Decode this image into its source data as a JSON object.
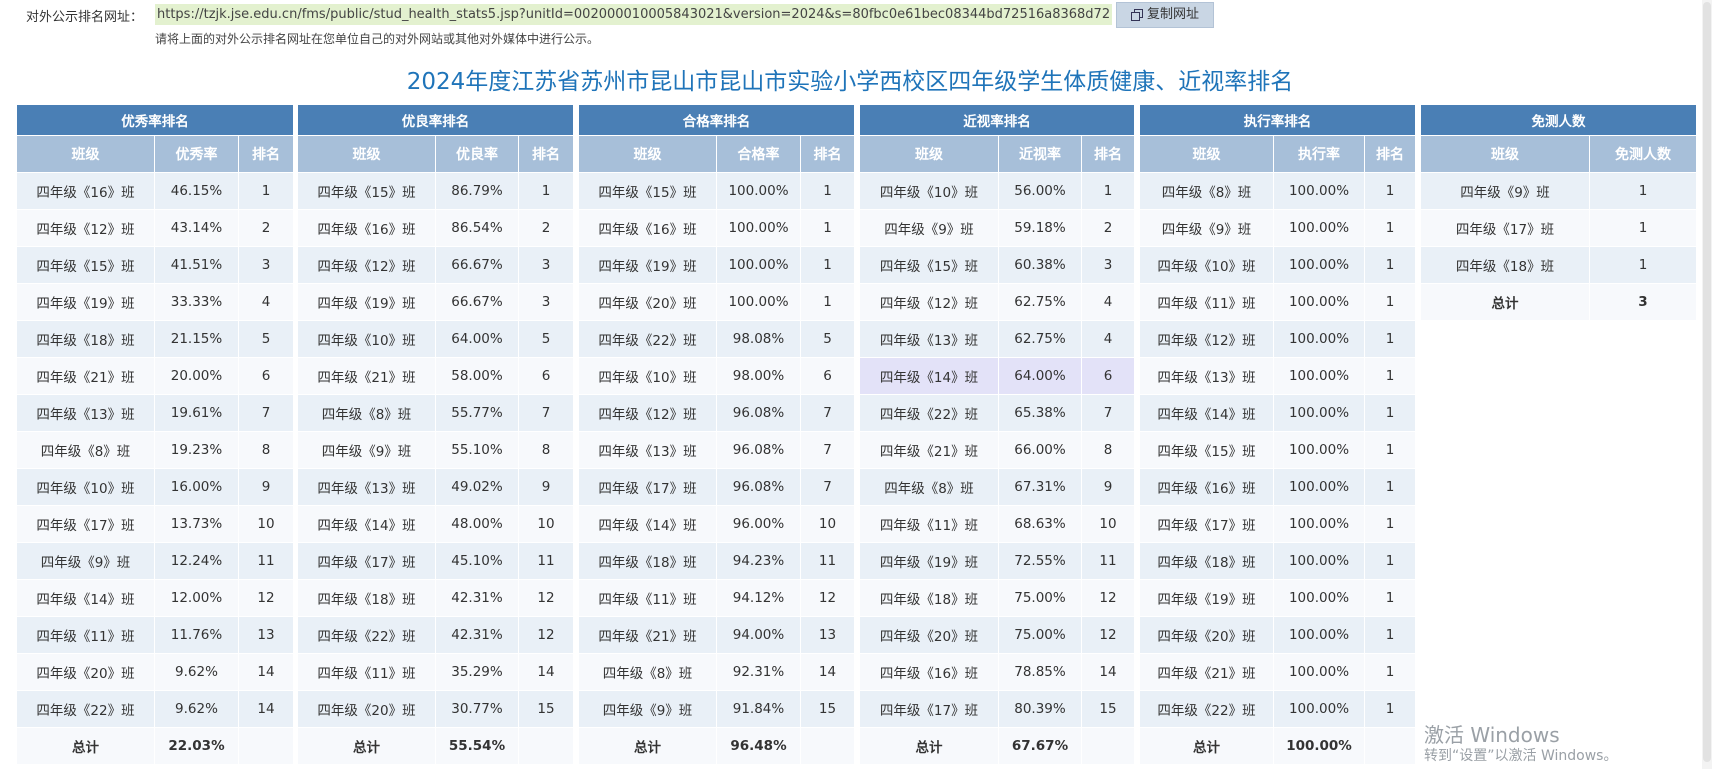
{
  "urlbar": {
    "label": "对外公示排名网址：",
    "url": "https://tzjk.jse.edu.cn/fms/public/stud_health_stats5.jsp?unitId=002000010005843021&version=2024&s=80fbc0e61bec08344bd72516a8368d72",
    "copy_label": "复制网址",
    "hint": "请将上面的对外公示排名网址在您单位自己的对外网站或其他对外媒体中进行公示。"
  },
  "title": "2024年度江苏省苏州市昆山市昆山市实验小学西校区四年级学生体质健康、近视率排名",
  "tables": {
    "excellent": {
      "title": "优秀率排名",
      "headers": [
        "班级",
        "优秀率",
        "排名"
      ],
      "rows": [
        [
          "四年级《16》班",
          "46.15%",
          "1"
        ],
        [
          "四年级《12》班",
          "43.14%",
          "2"
        ],
        [
          "四年级《15》班",
          "41.51%",
          "3"
        ],
        [
          "四年级《19》班",
          "33.33%",
          "4"
        ],
        [
          "四年级《18》班",
          "21.15%",
          "5"
        ],
        [
          "四年级《21》班",
          "20.00%",
          "6"
        ],
        [
          "四年级《13》班",
          "19.61%",
          "7"
        ],
        [
          "四年级《8》班",
          "19.23%",
          "8"
        ],
        [
          "四年级《10》班",
          "16.00%",
          "9"
        ],
        [
          "四年级《17》班",
          "13.73%",
          "10"
        ],
        [
          "四年级《9》班",
          "12.24%",
          "11"
        ],
        [
          "四年级《14》班",
          "12.00%",
          "12"
        ],
        [
          "四年级《11》班",
          "11.76%",
          "13"
        ],
        [
          "四年级《20》班",
          "9.62%",
          "14"
        ],
        [
          "四年级《22》班",
          "9.62%",
          "14"
        ]
      ],
      "total": [
        "总计",
        "22.03%",
        ""
      ]
    },
    "good": {
      "title": "优良率排名",
      "headers": [
        "班级",
        "优良率",
        "排名"
      ],
      "rows": [
        [
          "四年级《15》班",
          "86.79%",
          "1"
        ],
        [
          "四年级《16》班",
          "86.54%",
          "2"
        ],
        [
          "四年级《12》班",
          "66.67%",
          "3"
        ],
        [
          "四年级《19》班",
          "66.67%",
          "3"
        ],
        [
          "四年级《10》班",
          "64.00%",
          "5"
        ],
        [
          "四年级《21》班",
          "58.00%",
          "6"
        ],
        [
          "四年级《8》班",
          "55.77%",
          "7"
        ],
        [
          "四年级《9》班",
          "55.10%",
          "8"
        ],
        [
          "四年级《13》班",
          "49.02%",
          "9"
        ],
        [
          "四年级《14》班",
          "48.00%",
          "10"
        ],
        [
          "四年级《17》班",
          "45.10%",
          "11"
        ],
        [
          "四年级《18》班",
          "42.31%",
          "12"
        ],
        [
          "四年级《22》班",
          "42.31%",
          "12"
        ],
        [
          "四年级《11》班",
          "35.29%",
          "14"
        ],
        [
          "四年级《20》班",
          "30.77%",
          "15"
        ]
      ],
      "total": [
        "总计",
        "55.54%",
        ""
      ]
    },
    "pass": {
      "title": "合格率排名",
      "headers": [
        "班级",
        "合格率",
        "排名"
      ],
      "rows": [
        [
          "四年级《15》班",
          "100.00%",
          "1"
        ],
        [
          "四年级《16》班",
          "100.00%",
          "1"
        ],
        [
          "四年级《19》班",
          "100.00%",
          "1"
        ],
        [
          "四年级《20》班",
          "100.00%",
          "1"
        ],
        [
          "四年级《22》班",
          "98.08%",
          "5"
        ],
        [
          "四年级《10》班",
          "98.00%",
          "6"
        ],
        [
          "四年级《12》班",
          "96.08%",
          "7"
        ],
        [
          "四年级《13》班",
          "96.08%",
          "7"
        ],
        [
          "四年级《17》班",
          "96.08%",
          "7"
        ],
        [
          "四年级《14》班",
          "96.00%",
          "10"
        ],
        [
          "四年级《18》班",
          "94.23%",
          "11"
        ],
        [
          "四年级《11》班",
          "94.12%",
          "12"
        ],
        [
          "四年级《21》班",
          "94.00%",
          "13"
        ],
        [
          "四年级《8》班",
          "92.31%",
          "14"
        ],
        [
          "四年级《9》班",
          "91.84%",
          "15"
        ]
      ],
      "total": [
        "总计",
        "96.48%",
        ""
      ]
    },
    "myopia": {
      "title": "近视率排名",
      "headers": [
        "班级",
        "近视率",
        "排名"
      ],
      "rows": [
        [
          "四年级《10》班",
          "56.00%",
          "1"
        ],
        [
          "四年级《9》班",
          "59.18%",
          "2"
        ],
        [
          "四年级《15》班",
          "60.38%",
          "3"
        ],
        [
          "四年级《12》班",
          "62.75%",
          "4"
        ],
        [
          "四年级《13》班",
          "62.75%",
          "4"
        ],
        [
          "四年级《14》班",
          "64.00%",
          "6"
        ],
        [
          "四年级《22》班",
          "65.38%",
          "7"
        ],
        [
          "四年级《21》班",
          "66.00%",
          "8"
        ],
        [
          "四年级《8》班",
          "67.31%",
          "9"
        ],
        [
          "四年级《11》班",
          "68.63%",
          "10"
        ],
        [
          "四年级《19》班",
          "72.55%",
          "11"
        ],
        [
          "四年级《18》班",
          "75.00%",
          "12"
        ],
        [
          "四年级《20》班",
          "75.00%",
          "12"
        ],
        [
          "四年级《16》班",
          "78.85%",
          "14"
        ],
        [
          "四年级《17》班",
          "80.39%",
          "15"
        ]
      ],
      "total": [
        "总计",
        "67.67%",
        ""
      ]
    },
    "execution": {
      "title": "执行率排名",
      "headers": [
        "班级",
        "执行率",
        "排名"
      ],
      "rows": [
        [
          "四年级《8》班",
          "100.00%",
          "1"
        ],
        [
          "四年级《9》班",
          "100.00%",
          "1"
        ],
        [
          "四年级《10》班",
          "100.00%",
          "1"
        ],
        [
          "四年级《11》班",
          "100.00%",
          "1"
        ],
        [
          "四年级《12》班",
          "100.00%",
          "1"
        ],
        [
          "四年级《13》班",
          "100.00%",
          "1"
        ],
        [
          "四年级《14》班",
          "100.00%",
          "1"
        ],
        [
          "四年级《15》班",
          "100.00%",
          "1"
        ],
        [
          "四年级《16》班",
          "100.00%",
          "1"
        ],
        [
          "四年级《17》班",
          "100.00%",
          "1"
        ],
        [
          "四年级《18》班",
          "100.00%",
          "1"
        ],
        [
          "四年级《19》班",
          "100.00%",
          "1"
        ],
        [
          "四年级《20》班",
          "100.00%",
          "1"
        ],
        [
          "四年级《21》班",
          "100.00%",
          "1"
        ],
        [
          "四年级《22》班",
          "100.00%",
          "1"
        ]
      ],
      "total": [
        "总计",
        "100.00%",
        ""
      ]
    },
    "exempt": {
      "title": "免测人数",
      "headers": [
        "班级",
        "免测人数"
      ],
      "rows": [
        [
          "四年级《9》班",
          "1"
        ],
        [
          "四年级《17》班",
          "1"
        ],
        [
          "四年级《18》班",
          "1"
        ]
      ],
      "total": [
        "总计",
        "3"
      ]
    }
  },
  "watermark": {
    "line1": "激活 Windows",
    "line2": "转到“设置”以激活 Windows。"
  },
  "colors": {
    "title": "#1f74b9",
    "header_dark": "#4a7fb5",
    "header_light": "#a7bfd9",
    "total_row": "#bfd2e5",
    "highlight_row": "#e3e2f8"
  }
}
